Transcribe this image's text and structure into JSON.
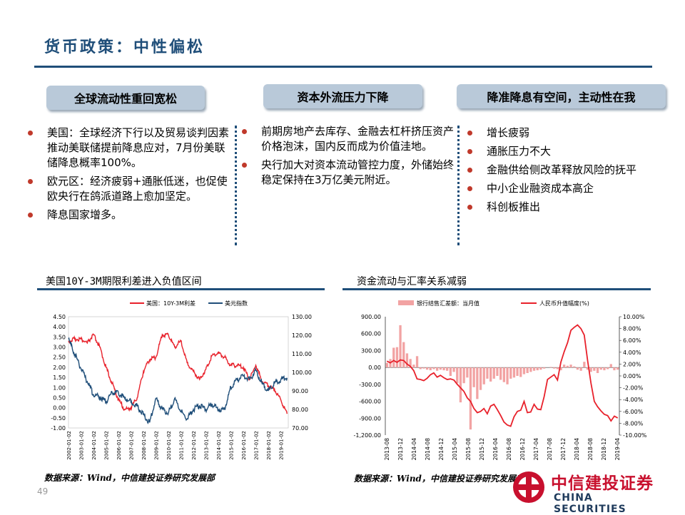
{
  "slide": {
    "title": "货币政策：中性偏松",
    "page_number": "49"
  },
  "columns": [
    {
      "heading": "全球流动性重回宽松",
      "bullets": [
        "美国：全球经济下行以及贸易谈判因素推动美联储提前降息应对，7月份美联储降息概率100%。",
        "欧元区：经济疲弱+通胀低迷，也促使欧央行在鸽派道路上愈加坚定。",
        "降息国家增多。"
      ]
    },
    {
      "heading": "资本外流压力下降",
      "bullets": [
        "前期房地产去库存、金融去杠杆挤压资产价格泡沫，国内反而成为价值洼地。",
        "央行加大对资本流动管控力度，外储始终稳定保持在3万亿美元附近。"
      ]
    },
    {
      "heading": "降准降息有空间，主动性在我",
      "bullets": [
        "增长疲弱",
        "通胀压力不大",
        "金融供给侧改革释放风险的抚平",
        "中小企业融资成本高企",
        "科创板推出"
      ]
    }
  ],
  "charts": {
    "left": {
      "title": "美国10Y-3M期限利差进入负值区间",
      "source": "数据来源：Wind，中信建投证券研究发展部",
      "legend": [
        "美国：10Y-3M利差",
        "美元指数"
      ],
      "colors": {
        "spread": "#e8212b",
        "usd": "#1f4e79"
      }
    },
    "right": {
      "title": "资金流动与汇率关系减弱",
      "source": "数据来源：Wind，中信建投证券研究发展部",
      "legend": [
        "银行结售汇差额：当月值",
        "人民币升值幅度(%)"
      ],
      "colors": {
        "bars": "#f2a3a3",
        "line": "#e8212b"
      }
    }
  },
  "logo": {
    "cn": "中信建投证券",
    "en": "CHINA SECURITIES"
  },
  "chart_data": [
    {
      "type": "line",
      "series": [
        {
          "name": "美国：10Y-3M利差",
          "axis": "left",
          "x": [
            2002.0,
            2002.5,
            2003.0,
            2003.5,
            2004.0,
            2004.5,
            2005.0,
            2005.5,
            2006.0,
            2006.5,
            2007.0,
            2007.5,
            2008.0,
            2008.5,
            2009.0,
            2009.5,
            2010.0,
            2010.5,
            2011.0,
            2011.5,
            2012.0,
            2012.5,
            2013.0,
            2013.5,
            2014.0,
            2014.5,
            2015.0,
            2015.5,
            2016.0,
            2016.5,
            2017.0,
            2017.5,
            2018.0,
            2018.5,
            2019.0,
            2019.5
          ],
          "values": [
            3.3,
            3.4,
            3.4,
            3.2,
            3.6,
            3.0,
            2.0,
            1.2,
            0.4,
            -0.1,
            0.0,
            0.5,
            1.8,
            2.4,
            2.5,
            3.6,
            3.6,
            3.0,
            3.3,
            2.2,
            1.8,
            1.4,
            1.9,
            2.6,
            2.7,
            2.5,
            2.1,
            2.1,
            2.0,
            1.4,
            2.1,
            1.3,
            1.1,
            0.9,
            0.4,
            -0.3
          ]
        },
        {
          "name": "美元指数",
          "axis": "right",
          "x": [
            2002.0,
            2002.5,
            2003.0,
            2003.5,
            2004.0,
            2004.5,
            2005.0,
            2005.5,
            2006.0,
            2006.5,
            2007.0,
            2007.5,
            2008.0,
            2008.5,
            2009.0,
            2009.5,
            2010.0,
            2010.5,
            2011.0,
            2011.5,
            2012.0,
            2012.5,
            2013.0,
            2013.5,
            2014.0,
            2014.5,
            2015.0,
            2015.5,
            2016.0,
            2016.5,
            2017.0,
            2017.5,
            2018.0,
            2018.5,
            2019.0,
            2019.5
          ],
          "values": [
            118,
            110,
            102,
            95,
            88,
            87,
            84,
            89,
            89,
            86,
            84,
            82,
            77,
            73,
            86,
            80,
            78,
            86,
            79,
            75,
            80,
            82,
            80,
            83,
            80,
            80,
            92,
            96,
            98,
            96,
            101,
            94,
            90,
            94,
            96,
            97
          ]
        }
      ],
      "xlabels": [
        "2002-01-02",
        "2003-01-02",
        "2004-01-02",
        "2005-01-02",
        "2006-01-02",
        "2007-01-02",
        "2008-01-02",
        "2009-01-02",
        "2010-01-02",
        "2011-01-02",
        "2012-01-02",
        "2013-01-02",
        "2014-01-02",
        "2015-01-02",
        "2016-01-02",
        "2017-01-02",
        "2018-01-02",
        "2019-01-02"
      ],
      "ylim_left": [
        -1.0,
        4.5
      ],
      "yticks_left": [
        "4.50",
        "4.00",
        "3.50",
        "3.00",
        "2.50",
        "2.00",
        "1.50",
        "1.00",
        "0.50",
        "0.00",
        "-0.50",
        "-1.00"
      ],
      "ylim_right": [
        70,
        130
      ],
      "yticks_right": [
        "130.00",
        "120.00",
        "110.00",
        "100.00",
        "90.00",
        "80.00",
        "70.00"
      ],
      "legend_position": "top"
    },
    {
      "type": "bar",
      "xlabels": [
        "2013-08",
        "2013-12",
        "2014-04",
        "2014-08",
        "2014-12",
        "2015-04",
        "2015-08",
        "2015-12",
        "2016-04",
        "2016-08",
        "2016-12",
        "2017-04",
        "2017-08",
        "2017-12",
        "2018-04",
        "2018-08",
        "2018-12",
        "2019-04"
      ],
      "series": [
        {
          "name": "银行结售汇差额：当月值",
          "axis": "left",
          "values": [
            80,
            150,
            350,
            360,
            750,
            450,
            250,
            150,
            50,
            200,
            -30,
            -20,
            -40,
            -50,
            -30,
            -60,
            -40,
            -50,
            -60,
            -150,
            -80,
            -280,
            -620,
            -280,
            -180,
            -1100,
            -350,
            -560,
            -400,
            -300,
            -200,
            -250,
            -200,
            -150,
            -220,
            -260,
            -300,
            -200,
            -180,
            -150,
            -170,
            -120,
            -100,
            -80,
            -60,
            -50,
            -40,
            -20,
            0,
            10,
            -20,
            -30,
            -50,
            50,
            30,
            50,
            20,
            -40,
            -60,
            100,
            -40,
            -80,
            -60,
            -100,
            -40,
            -50,
            -30,
            60,
            -50,
            -40
          ]
        },
        {
          "name": "人民币升值幅度(%)",
          "axis": "right",
          "values": [
            2.5,
            2.2,
            2.6,
            2.3,
            2.7,
            2.6,
            2.0,
            1.6,
            0.9,
            -0.5,
            -0.6,
            -0.8,
            -0.4,
            0.2,
            0.5,
            -0.2,
            0.1,
            -0.3,
            -0.6,
            -0.5,
            -0.7,
            -1.4,
            -2.0,
            -2.6,
            -3.7,
            -4.3,
            -5.5,
            -6.2,
            -6.0,
            -5.5,
            -6.4,
            -5.1,
            -4.8,
            -5.7,
            -6.7,
            -7.8,
            -8.3,
            -8.5,
            -6.9,
            -6.0,
            -5.8,
            -4.3,
            -6.2,
            -6.1,
            -4.8,
            -5.6,
            -5.7,
            -3.5,
            -0.6,
            -0.2,
            0.2,
            -0.7,
            2.3,
            4.1,
            5.6,
            7.7,
            8.2,
            8.6,
            8.0,
            6.9,
            2.6,
            -1.2,
            -4.3,
            -5.2,
            -5.9,
            -6.5,
            -6.7,
            -7.6,
            -6.8,
            -7.1
          ]
        }
      ],
      "ylim_left": [
        -1200,
        900
      ],
      "yticks_left": [
        "900.00",
        "600.00",
        "300.00",
        "0.00",
        "-300.00",
        "-600.00",
        "-900.00",
        "-1,200.00"
      ],
      "ylim_right": [
        -10,
        10
      ],
      "yticks_right": [
        "10.00%",
        "8.00%",
        "6.00%",
        "4.00%",
        "2.00%",
        "0.00%",
        "-2.00%",
        "-4.00%",
        "-6.00%",
        "-8.00%",
        "-10.00%"
      ],
      "legend_position": "top"
    }
  ]
}
